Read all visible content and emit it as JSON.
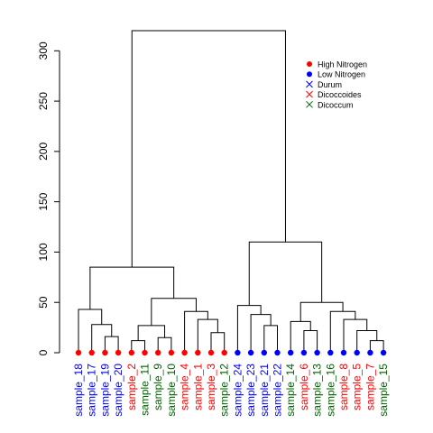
{
  "chart_data": {
    "type": "dendrogram",
    "title": "",
    "xlabel": "",
    "ylabel": "",
    "ylim": [
      0,
      320
    ],
    "yticks": [
      0,
      50,
      100,
      150,
      200,
      250,
      300
    ],
    "legend": {
      "placement": "top-right",
      "items": [
        {
          "label": "High Nitrogen",
          "symbol": "dot",
          "color": "#ff0000"
        },
        {
          "label": "Low Nitrogen",
          "symbol": "dot",
          "color": "#0000ff"
        },
        {
          "label": "Durum",
          "symbol": "cross",
          "color": "#0000ff"
        },
        {
          "label": "Dicoccoides",
          "symbol": "cross",
          "color": "#ff0000"
        },
        {
          "label": "Dicoccum",
          "symbol": "cross",
          "color": "#006400"
        }
      ]
    },
    "leaves": [
      {
        "label": "sample_18",
        "group": "Durum",
        "nitrogen": "High Nitrogen"
      },
      {
        "label": "sample_17",
        "group": "Durum",
        "nitrogen": "High Nitrogen"
      },
      {
        "label": "sample_19",
        "group": "Durum",
        "nitrogen": "High Nitrogen"
      },
      {
        "label": "sample_20",
        "group": "Durum",
        "nitrogen": "High Nitrogen"
      },
      {
        "label": "sample_2",
        "group": "Dicoccoides",
        "nitrogen": "High Nitrogen"
      },
      {
        "label": "sample_11",
        "group": "Dicoccum",
        "nitrogen": "High Nitrogen"
      },
      {
        "label": "sample_9",
        "group": "Dicoccum",
        "nitrogen": "High Nitrogen"
      },
      {
        "label": "sample_10",
        "group": "Dicoccum",
        "nitrogen": "High Nitrogen"
      },
      {
        "label": "sample_4",
        "group": "Dicoccoides",
        "nitrogen": "High Nitrogen"
      },
      {
        "label": "sample_1",
        "group": "Dicoccoides",
        "nitrogen": "High Nitrogen"
      },
      {
        "label": "sample_3",
        "group": "Dicoccoides",
        "nitrogen": "High Nitrogen"
      },
      {
        "label": "sample_12",
        "group": "Dicoccum",
        "nitrogen": "High Nitrogen"
      },
      {
        "label": "sample_24",
        "group": "Durum",
        "nitrogen": "Low Nitrogen"
      },
      {
        "label": "sample_23",
        "group": "Durum",
        "nitrogen": "Low Nitrogen"
      },
      {
        "label": "sample_21",
        "group": "Durum",
        "nitrogen": "Low Nitrogen"
      },
      {
        "label": "sample_22",
        "group": "Durum",
        "nitrogen": "Low Nitrogen"
      },
      {
        "label": "sample_14",
        "group": "Dicoccum",
        "nitrogen": "Low Nitrogen"
      },
      {
        "label": "sample_6",
        "group": "Dicoccoides",
        "nitrogen": "Low Nitrogen"
      },
      {
        "label": "sample_13",
        "group": "Dicoccum",
        "nitrogen": "Low Nitrogen"
      },
      {
        "label": "sample_16",
        "group": "Dicoccum",
        "nitrogen": "Low Nitrogen"
      },
      {
        "label": "sample_8",
        "group": "Dicoccoides",
        "nitrogen": "Low Nitrogen"
      },
      {
        "label": "sample_5",
        "group": "Dicoccoides",
        "nitrogen": "Low Nitrogen"
      },
      {
        "label": "sample_7",
        "group": "Dicoccoides",
        "nitrogen": "Low Nitrogen"
      },
      {
        "label": "sample_15",
        "group": "Dicoccum",
        "nitrogen": "Low Nitrogen"
      }
    ],
    "merges": [
      {
        "left": "sample_19",
        "right": "sample_20",
        "height": 16
      },
      {
        "left": "sample_17",
        "right": 1,
        "height": 28
      },
      {
        "left": "sample_18",
        "right": 2,
        "height": 43
      },
      {
        "left": "sample_2",
        "right": "sample_11",
        "height": 12
      },
      {
        "left": "sample_9",
        "right": "sample_10",
        "height": 15
      },
      {
        "left": 4,
        "right": 5,
        "height": 27
      },
      {
        "left": "sample_12",
        "right": "sample_3",
        "height": 20
      },
      {
        "left": "sample_1",
        "right": 7,
        "height": 33
      },
      {
        "left": "sample_4",
        "right": 8,
        "height": 41
      },
      {
        "left": 6,
        "right": 9,
        "height": 54
      },
      {
        "left": 3,
        "right": 10,
        "height": 85
      },
      {
        "left": "sample_22",
        "right": "sample_21",
        "height": 27
      },
      {
        "left": "sample_23",
        "right": 12,
        "height": 38
      },
      {
        "left": "sample_24",
        "right": 13,
        "height": 47
      },
      {
        "left": "sample_6",
        "right": "sample_13",
        "height": 22
      },
      {
        "left": "sample_14",
        "right": 15,
        "height": 31
      },
      {
        "left": "sample_7",
        "right": "sample_15",
        "height": 12
      },
      {
        "left": "sample_5",
        "right": 17,
        "height": 22
      },
      {
        "left": "sample_8",
        "right": 18,
        "height": 33
      },
      {
        "left": "sample_16",
        "right": 19,
        "height": 41
      },
      {
        "left": 16,
        "right": 20,
        "height": 50
      },
      {
        "left": 14,
        "right": 21,
        "height": 110
      },
      {
        "left": 11,
        "right": 22,
        "height": 320
      }
    ]
  }
}
